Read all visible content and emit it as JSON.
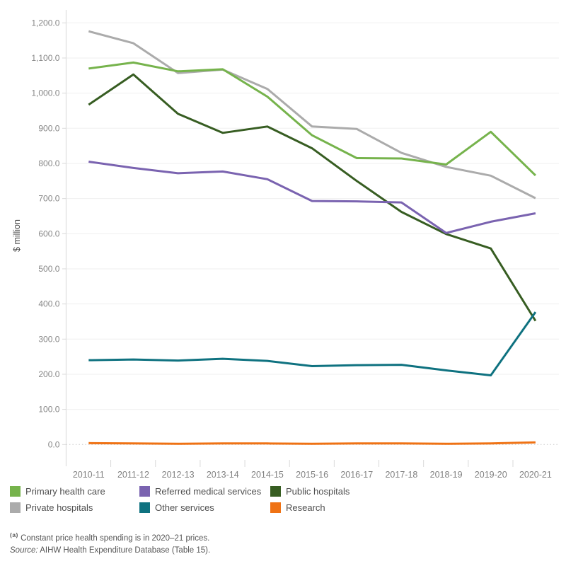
{
  "chart_data": {
    "type": "line",
    "title": "",
    "xlabel": "",
    "ylabel": "$ million",
    "ylim": [
      0,
      1200
    ],
    "y_tick_step": 100,
    "grid": true,
    "zero_line_style": "dotted",
    "legend_position": "bottom",
    "y_tick_labels": [
      "0.0",
      "100.0",
      "200.0",
      "300.0",
      "400.0",
      "500.0",
      "600.0",
      "700.0",
      "800.0",
      "900.0",
      "1,000.0",
      "1,100.0",
      "1,200.0"
    ],
    "categories": [
      "2010-11",
      "2011-12",
      "2012-13",
      "2013-14",
      "2014-15",
      "2015-16",
      "2016-17",
      "2017-18",
      "2018-19",
      "2019-20",
      "2020-21"
    ],
    "series": [
      {
        "name": "Primary health care",
        "color": "#76b34c",
        "values": [
          1070,
          1087,
          1062,
          1068,
          990,
          880,
          815,
          814,
          797,
          890,
          766
        ]
      },
      {
        "name": "Referred medical services",
        "color": "#7a63b0",
        "values": [
          805,
          787,
          772,
          777,
          755,
          693,
          692,
          689,
          602,
          634,
          658
        ]
      },
      {
        "name": "Public hospitals",
        "color": "#375d22",
        "values": [
          967,
          1053,
          941,
          887,
          905,
          843,
          750,
          662,
          599,
          558,
          352
        ]
      },
      {
        "name": "Private hospitals",
        "color": "#ababab",
        "values": [
          1176,
          1142,
          1057,
          1067,
          1012,
          905,
          898,
          830,
          790,
          765,
          701
        ]
      },
      {
        "name": "Other services",
        "color": "#0f7280",
        "values": [
          240,
          242,
          239,
          244,
          238,
          223,
          226,
          227,
          211,
          197,
          377
        ]
      },
      {
        "name": "Research",
        "color": "#ef7214",
        "values": [
          4,
          3,
          2,
          3,
          3,
          2,
          3,
          3,
          2,
          3,
          6
        ]
      }
    ],
    "draw_order": [
      "Private hospitals",
      "Public hospitals",
      "Referred medical services",
      "Primary health care",
      "Other services",
      "Research"
    ]
  },
  "legend": {
    "items": [
      "Primary health care",
      "Referred medical services",
      "Public hospitals",
      "Private hospitals",
      "Other services",
      "Research"
    ]
  },
  "footnotes": {
    "marker": "(a)",
    "note": " Constant price health spending is in 2020–21 prices.",
    "source_label": "Source:",
    "source_text": " AIHW Health Expenditure Database (Table 15)."
  }
}
